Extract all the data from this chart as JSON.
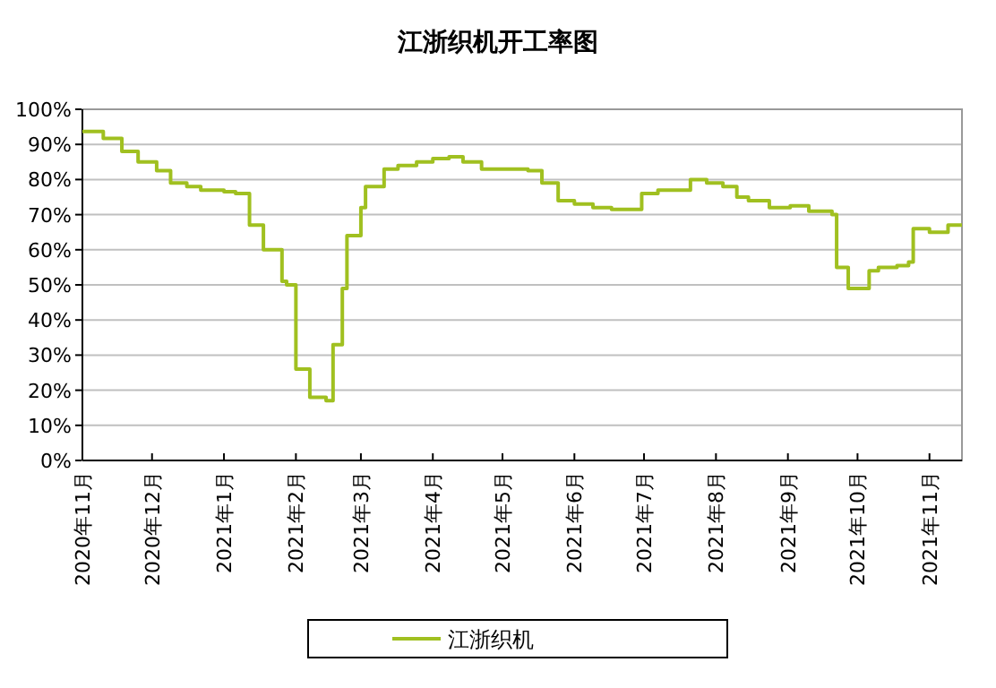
{
  "chart_data": {
    "type": "step",
    "title": "江浙织机开工率图",
    "x": [
      "2020-11-01",
      "2020-11-10",
      "2020-11-18",
      "2020-11-25",
      "2020-12-03",
      "2020-12-09",
      "2020-12-16",
      "2020-12-22",
      "2021-01-01",
      "2021-01-06",
      "2021-01-12",
      "2021-01-18",
      "2021-01-26",
      "2021-01-28",
      "2021-02-01",
      "2021-02-07",
      "2021-02-14",
      "2021-02-17",
      "2021-02-21",
      "2021-02-23",
      "2021-03-01",
      "2021-03-03",
      "2021-03-11",
      "2021-03-17",
      "2021-03-25",
      "2021-04-01",
      "2021-04-08",
      "2021-04-14",
      "2021-04-22",
      "2021-05-12",
      "2021-05-18",
      "2021-05-25",
      "2021-06-01",
      "2021-06-09",
      "2021-06-17",
      "2021-06-30",
      "2021-07-07",
      "2021-07-21",
      "2021-07-28",
      "2021-08-04",
      "2021-08-10",
      "2021-08-15",
      "2021-08-24",
      "2021-09-02",
      "2021-09-10",
      "2021-09-20",
      "2021-09-22",
      "2021-09-27",
      "2021-10-06",
      "2021-10-10",
      "2021-10-18",
      "2021-10-23",
      "2021-10-25",
      "2021-11-01",
      "2021-11-09",
      "2021-11-15"
    ],
    "series": [
      {
        "name": "江浙织机",
        "color": "#a0c020",
        "values": [
          93.7,
          91.7,
          88,
          85,
          82.5,
          79,
          78,
          77,
          76.5,
          76,
          67,
          60,
          51,
          50,
          26,
          18,
          17,
          33,
          49,
          64,
          72,
          78,
          83,
          84,
          85,
          86,
          86.5,
          85,
          83,
          82.5,
          79,
          74,
          73,
          72,
          71.5,
          76,
          77,
          80,
          79,
          78,
          75,
          74,
          72,
          72.5,
          71,
          70,
          55,
          49,
          54,
          55,
          55.5,
          56.5,
          66,
          65,
          67,
          67
        ]
      }
    ],
    "xlim": [
      "2020-11-01",
      "2021-11-15"
    ],
    "xticks": [
      {
        "value": "2020-11",
        "label": "2020年11月"
      },
      {
        "value": "2020-12",
        "label": "2020年12月"
      },
      {
        "value": "2021-01",
        "label": "2021年1月"
      },
      {
        "value": "2021-02",
        "label": "2021年2月"
      },
      {
        "value": "2021-03",
        "label": "2021年3月"
      },
      {
        "value": "2021-04",
        "label": "2021年4月"
      },
      {
        "value": "2021-05",
        "label": "2021年5月"
      },
      {
        "value": "2021-06",
        "label": "2021年6月"
      },
      {
        "value": "2021-07",
        "label": "2021年7月"
      },
      {
        "value": "2021-08",
        "label": "2021年8月"
      },
      {
        "value": "2021-09",
        "label": "2021年9月"
      },
      {
        "value": "2021-10",
        "label": "2021年10月"
      },
      {
        "value": "2021-11",
        "label": "2021年11月"
      }
    ],
    "ylim": [
      0,
      100
    ],
    "yticks": [
      {
        "value": 0,
        "label": "0%"
      },
      {
        "value": 10,
        "label": "10%"
      },
      {
        "value": 20,
        "label": "20%"
      },
      {
        "value": 30,
        "label": "30%"
      },
      {
        "value": 40,
        "label": "40%"
      },
      {
        "value": 50,
        "label": "50%"
      },
      {
        "value": 60,
        "label": "60%"
      },
      {
        "value": 70,
        "label": "70%"
      },
      {
        "value": 80,
        "label": "80%"
      },
      {
        "value": 90,
        "label": "90%"
      },
      {
        "value": 100,
        "label": "100%"
      }
    ],
    "grid": "y",
    "legend": "bottom",
    "marker": "none",
    "line_style": "solid"
  }
}
